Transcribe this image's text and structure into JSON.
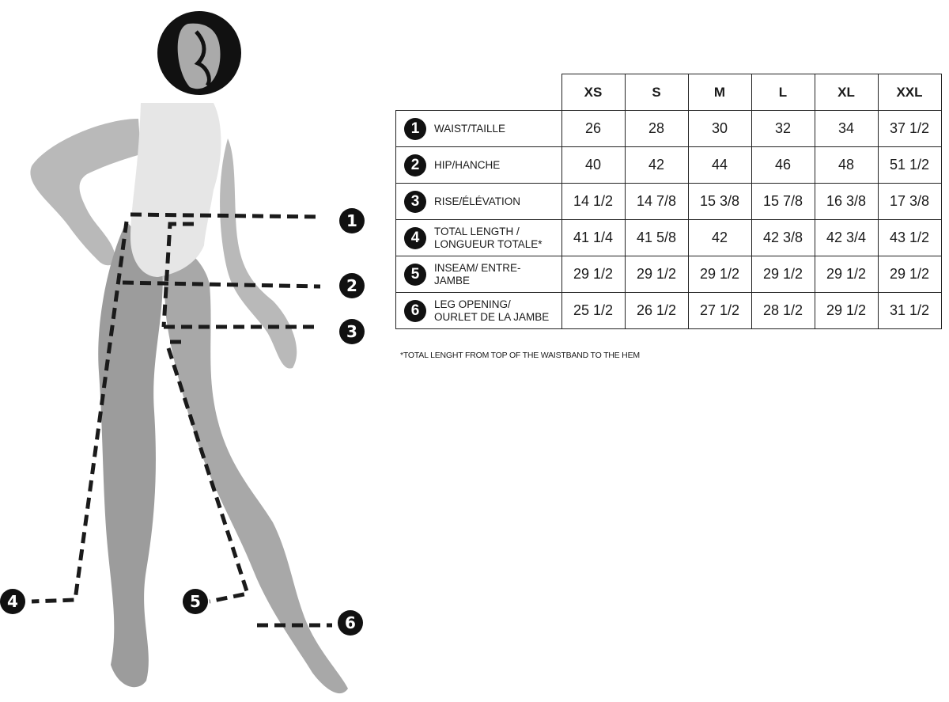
{
  "sizes": [
    "XS",
    "S",
    "M",
    "L",
    "XL",
    "XXL"
  ],
  "rows": [
    {
      "num": "1",
      "label": "WAIST/TAILLE",
      "values": [
        "26",
        "28",
        "30",
        "32",
        "34",
        "37 1/2"
      ]
    },
    {
      "num": "2",
      "label": "HIP/HANCHE",
      "values": [
        "40",
        "42",
        "44",
        "46",
        "48",
        "51 1/2"
      ]
    },
    {
      "num": "3",
      "label": "RISE/ÉLÉVATION",
      "values": [
        "14 1/2",
        "14 7/8",
        "15 3/8",
        "15 7/8",
        "16 3/8",
        "17 3/8"
      ]
    },
    {
      "num": "4",
      "label": "TOTAL LENGTH / LONGUEUR TOTALE*",
      "values": [
        "41 1/4",
        "41 5/8",
        "42",
        "42 3/8",
        "42 3/4",
        "43 1/2"
      ]
    },
    {
      "num": "5",
      "label": "INSEAM/ ENTRE-JAMBE",
      "values": [
        "29 1/2",
        "29 1/2",
        "29 1/2",
        "29 1/2",
        "29 1/2",
        "29 1/2"
      ]
    },
    {
      "num": "6",
      "label": "LEG OPENING/ OURLET DE LA JAMBE",
      "values": [
        "25 1/2",
        "26 1/2",
        "27 1/2",
        "28 1/2",
        "29 1/2",
        "31 1/2"
      ]
    }
  ],
  "footnote": "*TOTAL LENGHT FROM TOP OF THE WAISTBAND TO THE HEM",
  "figure_markers": [
    "1",
    "2",
    "3",
    "4",
    "5",
    "6"
  ],
  "colors": {
    "ink": "#1a1a1a",
    "torso": "#e6e6e6",
    "limb_light": "#b9b9b9",
    "limb": "#9c9c9c"
  }
}
